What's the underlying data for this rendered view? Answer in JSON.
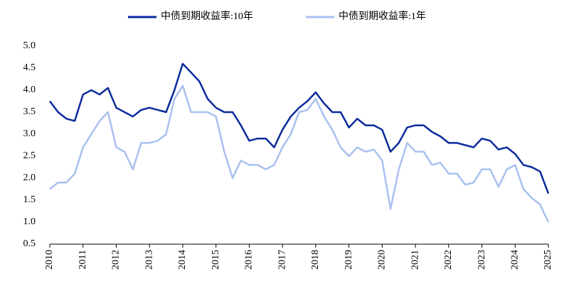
{
  "chart_data": {
    "type": "line",
    "x": [
      2010,
      2010.25,
      2010.5,
      2010.75,
      2011,
      2011.25,
      2011.5,
      2011.75,
      2012,
      2012.25,
      2012.5,
      2012.75,
      2013,
      2013.25,
      2013.5,
      2013.75,
      2014,
      2014.25,
      2014.5,
      2014.75,
      2015,
      2015.25,
      2015.5,
      2015.75,
      2016,
      2016.25,
      2016.5,
      2016.75,
      2017,
      2017.25,
      2017.5,
      2017.75,
      2018,
      2018.25,
      2018.5,
      2018.75,
      2019,
      2019.25,
      2019.5,
      2019.75,
      2020,
      2020.25,
      2020.5,
      2020.75,
      2021,
      2021.25,
      2021.5,
      2021.75,
      2022,
      2022.25,
      2022.5,
      2022.75,
      2023,
      2023.25,
      2023.5,
      2023.75,
      2024,
      2024.25,
      2024.5,
      2024.75,
      2025
    ],
    "series": [
      {
        "name": "中债到期收益率:10年",
        "color": "#0a2a9c",
        "values": [
          3.75,
          3.5,
          3.35,
          3.3,
          3.9,
          4.0,
          3.9,
          4.05,
          3.6,
          3.5,
          3.4,
          3.55,
          3.6,
          3.55,
          3.5,
          4.0,
          4.6,
          4.4,
          4.2,
          3.8,
          3.6,
          3.5,
          3.5,
          3.2,
          2.85,
          2.9,
          2.9,
          2.7,
          3.1,
          3.4,
          3.6,
          3.75,
          3.95,
          3.7,
          3.5,
          3.5,
          3.15,
          3.35,
          3.2,
          3.2,
          3.1,
          2.6,
          2.8,
          3.15,
          3.2,
          3.2,
          3.05,
          2.95,
          2.8,
          2.8,
          2.75,
          2.7,
          2.9,
          2.85,
          2.65,
          2.7,
          2.55,
          2.3,
          2.25,
          2.15,
          1.65
        ]
      },
      {
        "name": "中债到期收益率:1年",
        "color": "#a9c0f0",
        "values": [
          1.75,
          1.9,
          1.9,
          2.1,
          2.7,
          3.0,
          3.3,
          3.5,
          2.7,
          2.6,
          2.2,
          2.8,
          2.8,
          2.85,
          3.0,
          3.8,
          4.1,
          3.5,
          3.5,
          3.5,
          3.4,
          2.6,
          2.0,
          2.4,
          2.3,
          2.3,
          2.2,
          2.3,
          2.7,
          3.0,
          3.5,
          3.55,
          3.8,
          3.4,
          3.1,
          2.7,
          2.5,
          2.7,
          2.6,
          2.65,
          2.4,
          1.3,
          2.2,
          2.8,
          2.6,
          2.6,
          2.3,
          2.35,
          2.1,
          2.1,
          1.85,
          1.9,
          2.2,
          2.2,
          1.8,
          2.2,
          2.3,
          1.75,
          1.55,
          1.4,
          1.0
        ]
      }
    ],
    "xlim": [
      2010,
      2025
    ],
    "xticks": [
      2010,
      2011,
      2012,
      2013,
      2014,
      2015,
      2016,
      2017,
      2018,
      2019,
      2020,
      2021,
      2022,
      2023,
      2024,
      2025
    ],
    "ylim": [
      0.5,
      5.0
    ],
    "yticks": [
      0.5,
      {
        "value": 1,
        "label": "1.0"
      },
      1.5,
      {
        "value": 2,
        "label": "2.0"
      },
      2.5,
      {
        "value": 3,
        "label": "3.0"
      },
      3.5,
      {
        "value": 4,
        "label": "4.0"
      },
      4.5,
      {
        "value": 5,
        "label": "5.0"
      }
    ],
    "legend": "top",
    "grid": false
  }
}
